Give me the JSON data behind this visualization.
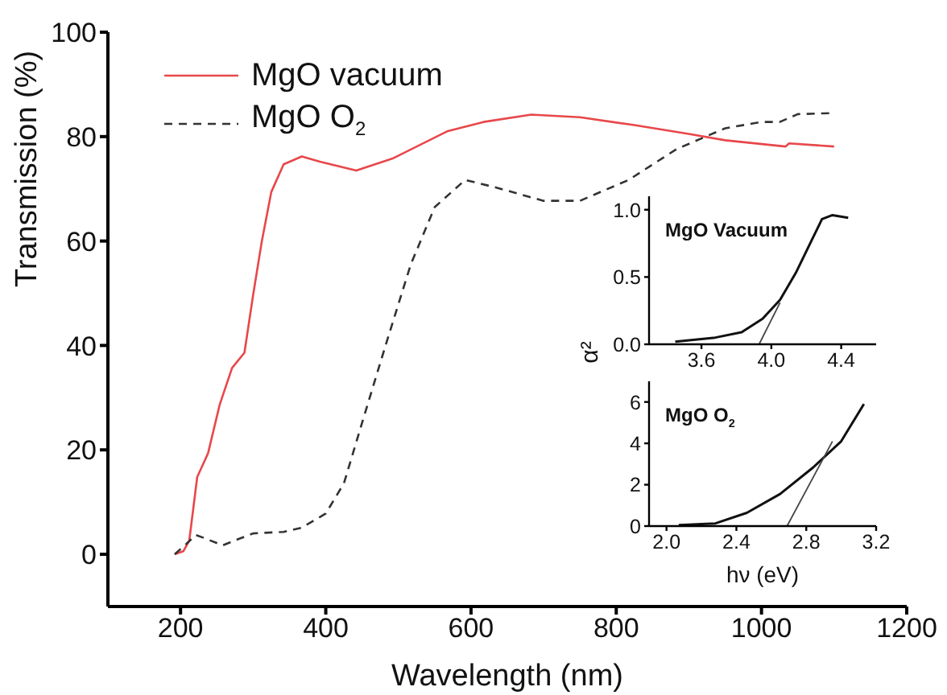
{
  "chart_data": [
    {
      "type": "line",
      "xlabel": "Wavelength (nm)",
      "ylabel": "Transmission (%)",
      "xlim": [
        100,
        1200
      ],
      "xticks": [
        200,
        400,
        600,
        800,
        1000,
        1200
      ],
      "ylim": [
        -10,
        100
      ],
      "yticks": [
        0,
        20,
        40,
        60,
        80,
        100
      ],
      "legend": "top left",
      "series": [
        {
          "name": "MgO vacuum",
          "color": "#e8474a",
          "line_style": "solid",
          "x": [
            192,
            204,
            212,
            223,
            238,
            254,
            271,
            288,
            300,
            312,
            325,
            342,
            367,
            392,
            442,
            492,
            567,
            617,
            683,
            750,
            825,
            900,
            950,
            1033,
            1038,
            1100
          ],
          "values": [
            0,
            0.6,
            2.6,
            14.8,
            19.4,
            28.7,
            35.7,
            38.6,
            49.7,
            60,
            69.4,
            74.7,
            76.2,
            75.2,
            73.5,
            75.8,
            81,
            82.8,
            84.2,
            83.7,
            82.2,
            80.5,
            79.3,
            78.1,
            78.7,
            78.1
          ]
        },
        {
          "name": "MgO O$_{2}$",
          "color": "#333333",
          "line_style": "dashed",
          "x": [
            192,
            208,
            221,
            233,
            258,
            283,
            300,
            342,
            367,
            400,
            425,
            450,
            483,
            517,
            550,
            592,
            633,
            700,
            750,
            817,
            883,
            950,
            1000,
            1025,
            1050,
            1100
          ],
          "values": [
            0,
            2,
            3.7,
            3.1,
            1.7,
            3.1,
            4,
            4.3,
            5.1,
            7.8,
            13.6,
            25.2,
            40.3,
            55.5,
            66.5,
            71.7,
            70.3,
            67.7,
            67.7,
            71.7,
            77.6,
            81.6,
            82.8,
            82.8,
            84.3,
            84.5
          ]
        }
      ]
    },
    {
      "type": "line",
      "ylabel": "α²",
      "annotations": [
        "MgO Vacuum"
      ],
      "xlim": [
        3.3,
        4.6
      ],
      "xticks": [
        {
          "value": 3.6,
          "label": "3.6"
        },
        {
          "value": 4.0,
          "label": "4.0"
        },
        {
          "value": 4.4,
          "label": "4.4"
        }
      ],
      "ylim": [
        0,
        1.1
      ],
      "yticks": [
        {
          "value": 0,
          "label": "0.0"
        },
        {
          "value": 0.5,
          "label": "0.5"
        },
        {
          "value": 1,
          "label": "1.0"
        }
      ],
      "series": [
        {
          "color": "#111111",
          "x": [
            3.45,
            3.68,
            3.83,
            3.95,
            4.05,
            4.14,
            4.23,
            4.29,
            4.35,
            4.44
          ],
          "values": [
            0.02,
            0.05,
            0.09,
            0.19,
            0.33,
            0.53,
            0.77,
            0.93,
            0.96,
            0.94
          ]
        },
        {
          "type": "line",
          "color": "#444444",
          "x": [
            3.93,
            4.05
          ],
          "values": [
            0,
            0.31
          ]
        }
      ]
    },
    {
      "type": "line",
      "xlabel": "hν (eV)",
      "annotations": [
        "MgO O$_{2}$"
      ],
      "xlim": [
        1.9,
        3.2
      ],
      "xticks": [
        {
          "value": 2,
          "label": "2.0"
        },
        {
          "value": 2.4,
          "label": "2.4"
        },
        {
          "value": 2.8,
          "label": "2.8"
        },
        {
          "value": 3.2,
          "label": "3.2"
        }
      ],
      "ylim": [
        0,
        7
      ],
      "yticks": [
        0,
        2,
        4,
        6
      ],
      "series": [
        {
          "color": "#111111",
          "x": [
            2.07,
            2.28,
            2.46,
            2.65,
            2.84,
            3.0,
            3.13
          ],
          "values": [
            0.05,
            0.13,
            0.64,
            1.55,
            2.84,
            4.1,
            5.9
          ]
        },
        {
          "type": "line",
          "color": "#444444",
          "x": [
            2.69,
            2.95
          ],
          "values": [
            0,
            4.1
          ]
        }
      ]
    }
  ]
}
